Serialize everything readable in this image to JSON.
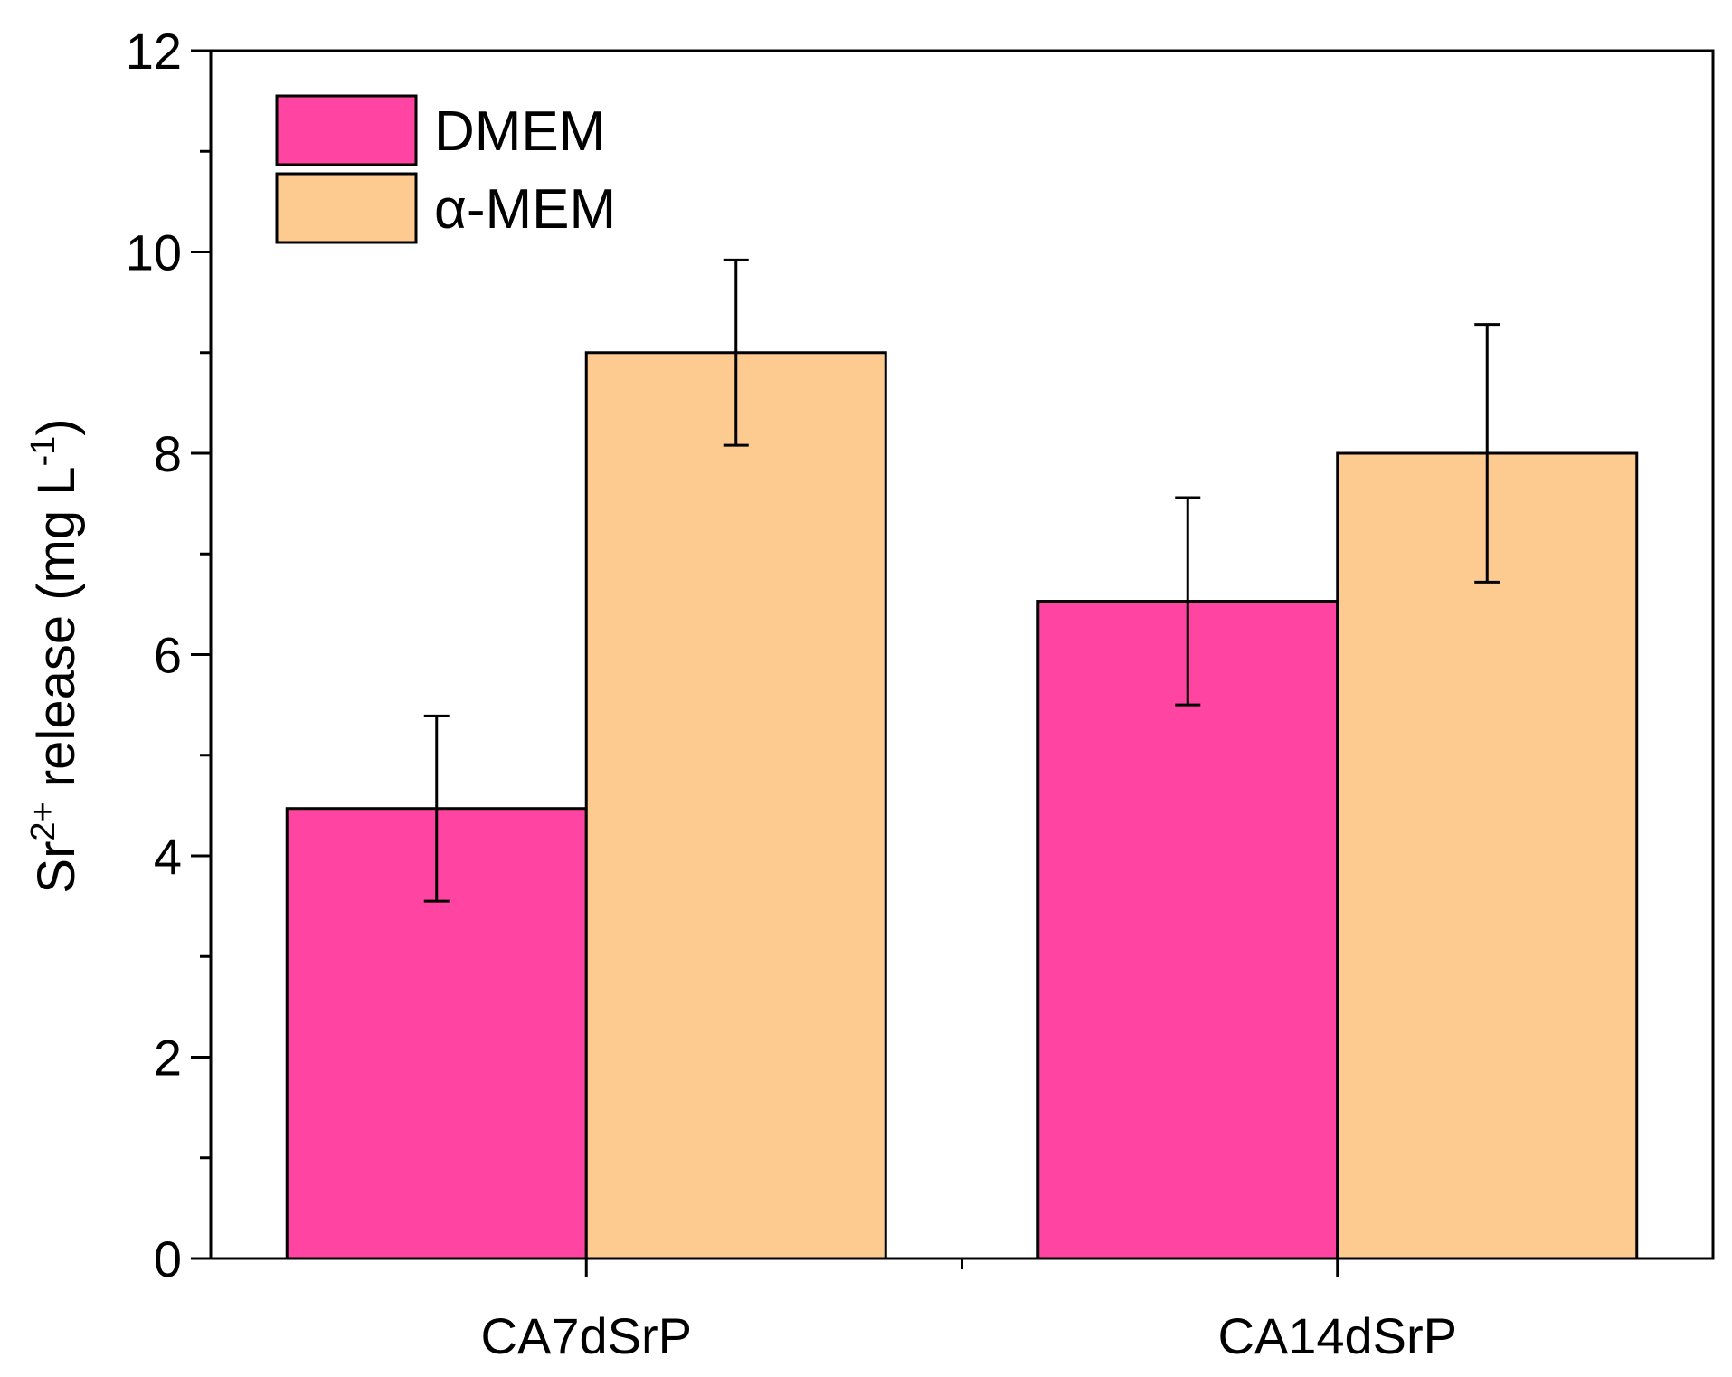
{
  "chart_data": {
    "type": "bar",
    "title": "",
    "xlabel": "",
    "ylabel": {
      "base": "Sr",
      "ion_charge": "2+",
      "text": " release (mg L",
      "unit_exponent": "-1",
      "close": ")"
    },
    "ylim": [
      0,
      12
    ],
    "yticks": [
      "0",
      "2",
      "4",
      "6",
      "8",
      "10",
      "12"
    ],
    "categories": [
      "CA7dSrP",
      "CA14dSrP"
    ],
    "legend_position": "top-left",
    "series": [
      {
        "name": "DMEM",
        "color": "#ff45a1",
        "values": [
          4.47,
          6.53
        ],
        "errors": [
          0.92,
          1.03
        ]
      },
      {
        "name": "α-MEM",
        "color": "#fdca90",
        "values": [
          9.0,
          8.0
        ],
        "errors": [
          0.92,
          1.28
        ]
      }
    ]
  }
}
